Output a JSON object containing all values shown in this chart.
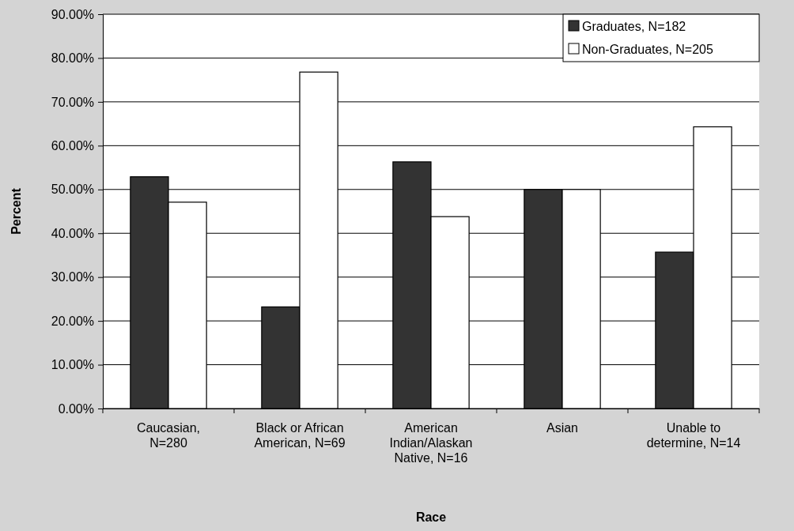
{
  "chart_data": {
    "type": "bar",
    "xlabel": "Race",
    "ylabel": "Percent",
    "categories": [
      "Caucasian, N=280",
      "Black or African American, N=69",
      "American Indian/Alaskan Native, N=16",
      "Asian",
      "Unable to determine, N=14"
    ],
    "series": [
      {
        "name": "Graduates, N=182",
        "color": "#333333",
        "values": [
          52.9,
          23.2,
          56.3,
          50,
          35.7
        ]
      },
      {
        "name": "Non-Graduates, N=205",
        "color": "#ffffff",
        "values": [
          47.1,
          76.8,
          43.8,
          50,
          64.3
        ]
      }
    ],
    "ylim": [
      0,
      90
    ],
    "yticks": [
      {
        "value": 0,
        "label": "0.00%"
      },
      {
        "value": 10,
        "label": "10.00%"
      },
      {
        "value": 20,
        "label": "20.00%"
      },
      {
        "value": 30,
        "label": "30.00%"
      },
      {
        "value": 40,
        "label": "40.00%"
      },
      {
        "value": 50,
        "label": "50.00%"
      },
      {
        "value": 60,
        "label": "60.00%"
      },
      {
        "value": 70,
        "label": "70.00%"
      },
      {
        "value": 80,
        "label": "80.00%"
      },
      {
        "value": 90,
        "label": "90.00%"
      }
    ],
    "grid": "y",
    "legend": "top right"
  }
}
